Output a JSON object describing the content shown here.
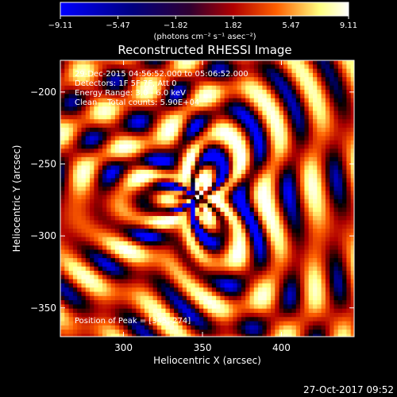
{
  "chart_data": {
    "type": "heatmap",
    "title": "Reconstructed RHESSI Image",
    "xlabel": "Heliocentric X (arcsec)",
    "ylabel": "Heliocentric Y (arcsec)",
    "xlim": [
      260,
      446
    ],
    "ylim": [
      -370,
      -178
    ],
    "x_ticks": [
      300,
      350,
      400
    ],
    "y_ticks": [
      -200,
      -250,
      -300,
      -350
    ],
    "x_tick_labels": [
      "300",
      "350",
      "400"
    ],
    "y_tick_labels": [
      "−200",
      "−250",
      "−300",
      "−350"
    ],
    "colorbar": {
      "range": [
        -9.11,
        9.11
      ],
      "ticks": [
        -9.11,
        -5.47,
        -1.82,
        1.82,
        5.47,
        9.11
      ],
      "tick_labels": [
        "−9.11",
        "−5.47",
        "−1.82",
        "1.82",
        "5.47",
        "9.11"
      ],
      "units_label": "(photons cm⁻² s⁻¹ asec⁻²)"
    },
    "annotations": [
      "29-Dec-2015 04:56:52.000 to 05:06:52.000",
      "Detectors: 1F 5F 7F, Att 0",
      "Energy Range: 3.0 - 6.0 keV",
      "Clean    Total counts: 5.90E+04"
    ],
    "peak_label": "Position of Peak = [345,-274]",
    "peak": [
      345,
      -274
    ],
    "colormap": [
      "#0000ff",
      "#000000",
      "#b00000",
      "#ff6000",
      "#ffff80",
      "#ffffff"
    ]
  },
  "footer": {
    "timestamp": "27-Oct-2017 09:52"
  }
}
